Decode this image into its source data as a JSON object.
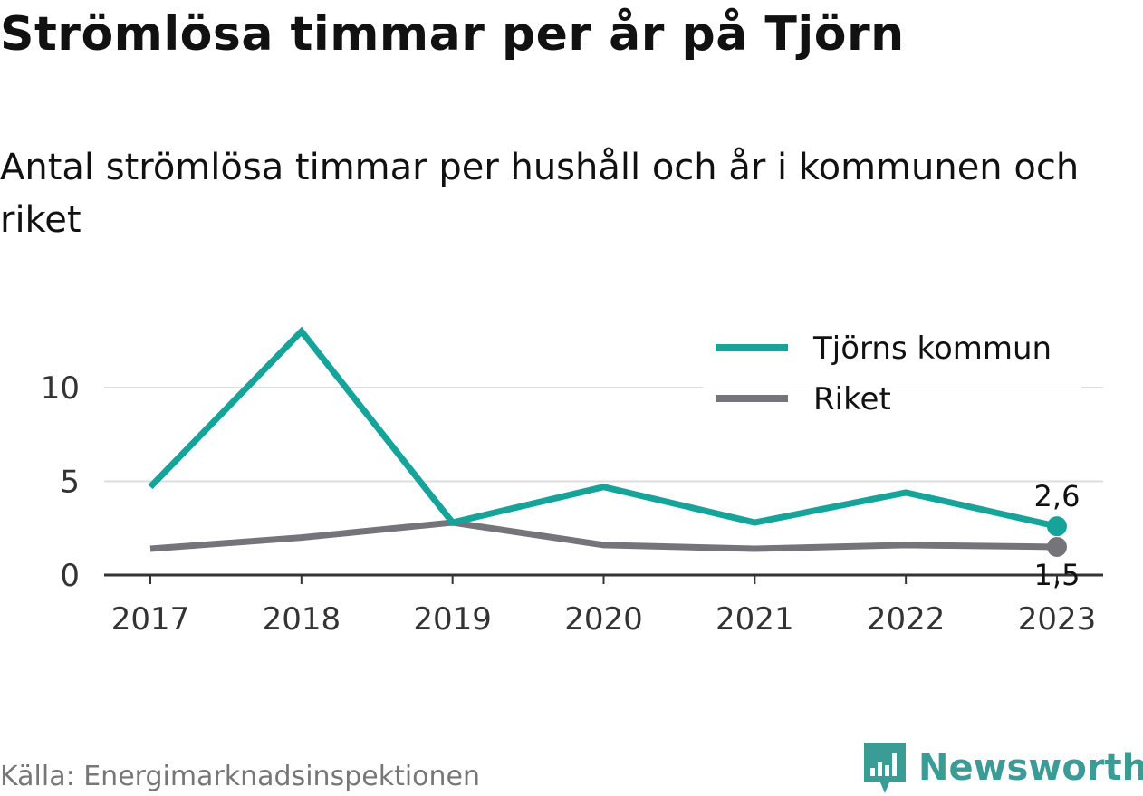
{
  "header": {
    "title": "Strömlösa timmar per år på Tjörn",
    "subtitle": "Antal strömlösa timmar per hushåll och år i kommunen och riket"
  },
  "chart_data": {
    "type": "line",
    "x": [
      "2017",
      "2018",
      "2019",
      "2020",
      "2021",
      "2022",
      "2023"
    ],
    "ylim": [
      0,
      13
    ],
    "yticks": [
      0,
      5,
      10
    ],
    "grid": true,
    "legend_position": "top-right",
    "series": [
      {
        "name": "Tjörns kommun",
        "color": "#16a39a",
        "values": [
          4.7,
          13.0,
          2.8,
          4.7,
          2.8,
          4.4,
          2.6
        ]
      },
      {
        "name": "Riket",
        "color": "#75747b",
        "values": [
          1.4,
          2.0,
          2.8,
          1.6,
          1.4,
          1.6,
          1.5
        ]
      }
    ],
    "end_labels": [
      "2,6",
      "1,5"
    ]
  },
  "footer": {
    "source": "Källa: Energimarknadsinspektionen",
    "brand": "Newsworthy",
    "brand_color": "#3a9c94",
    "brand_icon": "newsworthy-logo-icon"
  }
}
